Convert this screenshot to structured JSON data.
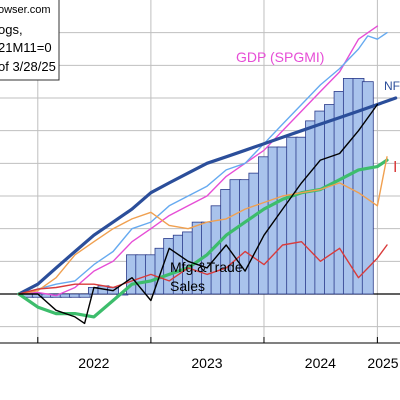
{
  "chart_data": {
    "type": "line",
    "note_lines": [
      "owser.com",
      "ogs,",
      "21M11=0",
      "of 3/28/25"
    ],
    "x_ticks": [
      "2022",
      "2023",
      "2024",
      "2025"
    ],
    "x_domain": [
      "2021-09-01",
      "2025-03-15"
    ],
    "ylim": [
      -0.15,
      0.9
    ],
    "y_gridlines": [
      -0.1,
      0.0,
      0.1,
      0.2,
      0.3,
      0.4,
      0.5,
      0.6,
      0.7,
      0.8
    ],
    "colors": {
      "nfp": "#2b4e9a",
      "employment": "#3dbd6c",
      "income": "#f0a050",
      "industrial_production": "#d93b3b",
      "gdp": "#e64ed6",
      "manufacturing_trade_sales": "#000000",
      "bars": "#a9c3ec",
      "bar_edge": "#2a3a8a",
      "light_blue": "#66aaf0",
      "grid": "#bfbfbf"
    },
    "series": [
      {
        "key": "gdp",
        "name": "GDP (SPGMI)",
        "x": [
          "2021-11",
          "2022-01",
          "2022-03",
          "2022-05",
          "2022-07",
          "2022-09",
          "2022-11",
          "2023-01",
          "2023-03",
          "2023-05",
          "2023-07",
          "2023-09",
          "2023-11",
          "2024-01",
          "2024-03",
          "2024-05",
          "2024-07",
          "2024-09",
          "2024-11",
          "2025-01"
        ],
        "values": [
          0.0,
          0.005,
          -0.005,
          0.02,
          0.07,
          0.1,
          0.16,
          0.2,
          0.24,
          0.27,
          0.3,
          0.36,
          0.4,
          0.44,
          0.5,
          0.56,
          0.62,
          0.68,
          0.78,
          0.82
        ]
      },
      {
        "key": "light_blue",
        "name": "",
        "x": [
          "2021-11",
          "2022-01",
          "2022-03",
          "2022-05",
          "2022-07",
          "2022-09",
          "2022-11",
          "2023-01",
          "2023-03",
          "2023-05",
          "2023-07",
          "2023-09",
          "2023-11",
          "2024-01",
          "2024-03",
          "2024-05",
          "2024-07",
          "2024-09",
          "2024-11",
          "2024-12",
          "2025-01",
          "2025-02"
        ],
        "values": [
          0.0,
          0.015,
          0.03,
          0.04,
          0.09,
          0.13,
          0.2,
          0.22,
          0.27,
          0.3,
          0.33,
          0.38,
          0.4,
          0.46,
          0.52,
          0.58,
          0.64,
          0.69,
          0.75,
          0.79,
          0.78,
          0.8
        ]
      },
      {
        "key": "nfp",
        "name": "NFP",
        "x": [
          "2021-11",
          "2022-01",
          "2022-03",
          "2022-05",
          "2022-07",
          "2022-09",
          "2022-11",
          "2023-01",
          "2023-03",
          "2023-05",
          "2023-07",
          "2023-09",
          "2023-11",
          "2024-01",
          "2024-03",
          "2024-05",
          "2024-07",
          "2024-09",
          "2024-11",
          "2025-01",
          "2025-03"
        ],
        "values": [
          0.0,
          0.03,
          0.08,
          0.13,
          0.18,
          0.22,
          0.26,
          0.31,
          0.34,
          0.37,
          0.4,
          0.42,
          0.44,
          0.46,
          0.48,
          0.5,
          0.52,
          0.54,
          0.56,
          0.58,
          0.6
        ]
      },
      {
        "key": "employment",
        "name": "",
        "x": [
          "2021-11",
          "2022-01",
          "2022-03",
          "2022-05",
          "2022-07",
          "2022-09",
          "2022-11",
          "2023-01",
          "2023-03",
          "2023-05",
          "2023-07",
          "2023-09",
          "2023-11",
          "2024-01",
          "2024-03",
          "2024-05",
          "2024-07",
          "2024-09",
          "2024-11",
          "2025-01",
          "2025-02"
        ],
        "values": [
          0.0,
          -0.04,
          -0.06,
          -0.06,
          -0.07,
          -0.02,
          0.03,
          0.04,
          0.06,
          0.08,
          0.12,
          0.18,
          0.22,
          0.26,
          0.29,
          0.31,
          0.32,
          0.35,
          0.38,
          0.39,
          0.41
        ]
      },
      {
        "key": "income",
        "name": "",
        "x": [
          "2021-11",
          "2022-01",
          "2022-03",
          "2022-05",
          "2022-07",
          "2022-09",
          "2022-11",
          "2023-01",
          "2023-03",
          "2023-05",
          "2023-07",
          "2023-09",
          "2023-11",
          "2024-01",
          "2024-03",
          "2024-05",
          "2024-07",
          "2024-09",
          "2024-11",
          "2025-01",
          "2025-02"
        ],
        "values": [
          0.0,
          0.01,
          0.05,
          0.12,
          0.16,
          0.2,
          0.23,
          0.25,
          0.21,
          0.2,
          0.22,
          0.23,
          0.26,
          0.28,
          0.3,
          0.31,
          0.32,
          0.34,
          0.31,
          0.27,
          0.42
        ]
      },
      {
        "key": "industrial_production",
        "name": "I",
        "x": [
          "2021-11",
          "2022-01",
          "2022-03",
          "2022-05",
          "2022-07",
          "2022-09",
          "2022-11",
          "2023-01",
          "2023-03",
          "2023-05",
          "2023-07",
          "2023-09",
          "2023-11",
          "2024-01",
          "2024-03",
          "2024-05",
          "2024-07",
          "2024-09",
          "2024-11",
          "2025-01",
          "2025-02"
        ],
        "values": [
          0.0,
          0.015,
          0.02,
          0.03,
          0.03,
          0.02,
          0.04,
          0.06,
          0.04,
          0.08,
          0.06,
          0.08,
          0.13,
          0.09,
          0.15,
          0.16,
          0.1,
          0.14,
          0.05,
          0.11,
          0.15
        ]
      },
      {
        "key": "manufacturing_trade_sales",
        "name": "Mfg.&Trade Sales",
        "x": [
          "2021-11",
          "2022-01",
          "2022-03",
          "2022-05",
          "2022-06",
          "2022-07",
          "2022-09",
          "2022-11",
          "2023-01",
          "2023-03",
          "2023-05",
          "2023-07",
          "2023-09",
          "2023-11",
          "2024-01",
          "2024-03",
          "2024-05",
          "2024-07",
          "2024-09",
          "2024-11",
          "2025-01"
        ],
        "values": [
          0.0,
          0.0,
          -0.05,
          -0.07,
          -0.09,
          0.02,
          0.01,
          0.05,
          -0.02,
          0.14,
          0.1,
          0.08,
          0.15,
          0.07,
          0.18,
          0.26,
          0.34,
          0.41,
          0.43,
          0.5,
          0.58
        ]
      }
    ],
    "bars": {
      "key": "bars",
      "name": "",
      "x": [
        "2021-12",
        "2022-01",
        "2022-02",
        "2022-03",
        "2022-04",
        "2022-05",
        "2022-06",
        "2022-07",
        "2022-08",
        "2022-09",
        "2022-10",
        "2022-11",
        "2022-12",
        "2023-01",
        "2023-02",
        "2023-03",
        "2023-04",
        "2023-05",
        "2023-06",
        "2023-07",
        "2023-08",
        "2023-09",
        "2023-10",
        "2023-11",
        "2023-12",
        "2024-01",
        "2024-02",
        "2024-03",
        "2024-04",
        "2024-05",
        "2024-06",
        "2024-07",
        "2024-08",
        "2024-09",
        "2024-10",
        "2024-11",
        "2024-12"
      ],
      "values": [
        -0.01,
        -0.01,
        -0.01,
        -0.01,
        -0.01,
        -0.01,
        -0.01,
        0.02,
        0.025,
        0.02,
        0.0,
        0.12,
        0.12,
        0.12,
        0.14,
        0.17,
        0.18,
        0.19,
        0.22,
        0.22,
        0.27,
        0.32,
        0.35,
        0.35,
        0.37,
        0.42,
        0.45,
        0.45,
        0.48,
        0.48,
        0.53,
        0.56,
        0.58,
        0.62,
        0.66,
        0.66,
        0.65
      ]
    }
  }
}
